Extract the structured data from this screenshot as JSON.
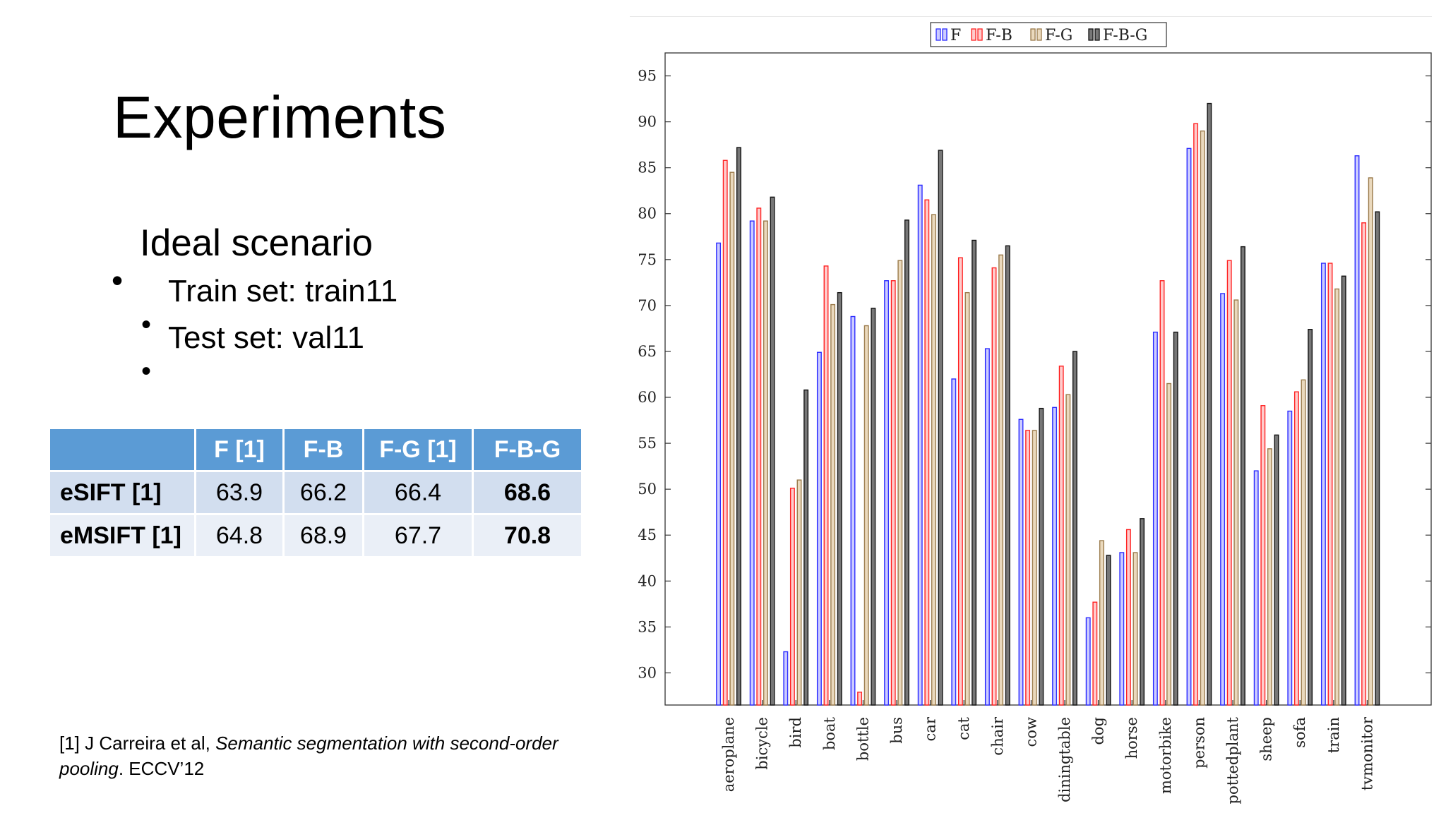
{
  "slide": {
    "title": "Experiments",
    "bullets": {
      "main": "Ideal scenario",
      "sub": [
        "Train set: train11",
        "Test set: val11"
      ]
    }
  },
  "results_table": {
    "headers": [
      "",
      "F [1]",
      "F-B",
      "F-G [1]",
      "F-B-G"
    ],
    "rows": [
      {
        "label": "eSIFT [1]",
        "values": [
          "63.9",
          "66.2",
          "66.4",
          "68.6"
        ]
      },
      {
        "label": "eMSIFT [1]",
        "values": [
          "64.8",
          "68.9",
          "67.7",
          "70.8"
        ]
      }
    ],
    "header_color": "#5b9bd5"
  },
  "footnote": {
    "prefix": "[1] J Carreira et al, ",
    "italic": "Semantic segmentation with second-order pooling",
    "suffix": ". ECCV’12"
  },
  "chart_data": {
    "type": "bar",
    "title": "",
    "xlabel": "",
    "ylabel": "",
    "ylim": [
      26.5,
      97.5
    ],
    "yticks": [
      30,
      35,
      40,
      45,
      50,
      55,
      60,
      65,
      70,
      75,
      80,
      85,
      90,
      95
    ],
    "legend_position": "top-center",
    "categories": [
      "aeroplane",
      "bicycle",
      "bird",
      "boat",
      "bottle",
      "bus",
      "car",
      "cat",
      "chair",
      "cow",
      "diningtable",
      "dog",
      "horse",
      "motorbike",
      "person",
      "pottedplant",
      "sheep",
      "sofa",
      "train",
      "tvmonitor"
    ],
    "series": [
      {
        "name": "F",
        "color": "#2b2bff",
        "fill": "#ccccff",
        "values": [
          76.8,
          79.2,
          32.3,
          64.9,
          68.8,
          72.7,
          83.1,
          62.0,
          65.3,
          57.6,
          58.9,
          36.0,
          43.1,
          67.1,
          87.1,
          71.3,
          52.0,
          58.5,
          74.6,
          86.3
        ]
      },
      {
        "name": "F-B",
        "color": "#ff2222",
        "fill": "#ffcccc",
        "values": [
          85.8,
          80.6,
          50.1,
          74.3,
          27.9,
          72.7,
          81.5,
          75.2,
          74.1,
          56.4,
          63.4,
          37.7,
          45.6,
          72.7,
          89.8,
          74.9,
          59.1,
          60.6,
          74.6,
          79.0
        ]
      },
      {
        "name": "F-G",
        "color": "#9a7a4a",
        "fill": "#ead9bd",
        "values": [
          84.5,
          79.2,
          51.0,
          70.1,
          67.8,
          74.9,
          79.9,
          71.4,
          75.5,
          56.4,
          60.3,
          44.4,
          43.1,
          61.5,
          89.0,
          70.6,
          54.4,
          61.9,
          71.8,
          83.9
        ]
      },
      {
        "name": "F-B-G",
        "color": "#111111",
        "fill": "#777777",
        "values": [
          87.2,
          81.8,
          60.8,
          71.4,
          69.7,
          79.3,
          86.9,
          77.1,
          76.5,
          58.8,
          65.0,
          42.8,
          46.8,
          67.1,
          92.0,
          76.4,
          55.9,
          67.4,
          73.2,
          80.2
        ]
      }
    ]
  }
}
